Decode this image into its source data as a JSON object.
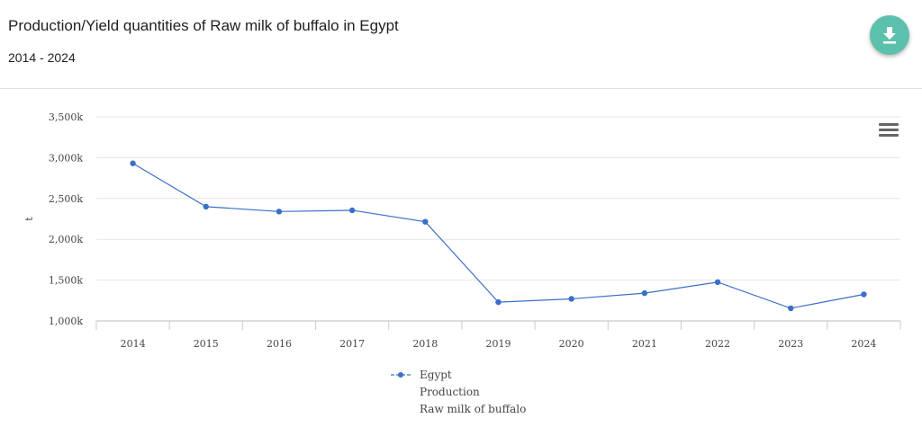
{
  "header": {
    "title": "Production/Yield quantities of Raw milk of buffalo in Egypt",
    "subtitle": "2014 - 2024"
  },
  "icons": {
    "download": "download-icon",
    "menu": "hamburger-menu-icon"
  },
  "colors": {
    "accent": "#5cc1ac",
    "series": "#3a6fc9"
  },
  "chart_data": {
    "type": "line",
    "title": "Production/Yield quantities of Raw milk of buffalo in Egypt",
    "subtitle": "2014 - 2024",
    "ylabel": "t",
    "xlabel": "",
    "categories": [
      "2014",
      "2015",
      "2016",
      "2017",
      "2018",
      "2019",
      "2020",
      "2021",
      "2022",
      "2023",
      "2024"
    ],
    "series": [
      {
        "name": "Egypt",
        "legend_lines": [
          "Egypt",
          "Production",
          "Raw milk of buffalo"
        ],
        "values": [
          2930000,
          2400000,
          2340000,
          2355000,
          2215000,
          1230000,
          1270000,
          1340000,
          1475000,
          1155000,
          1325000
        ]
      }
    ],
    "yticks": [
      "1,000k",
      "1,500k",
      "2,000k",
      "2,500k",
      "3,000k",
      "3,500k"
    ],
    "ylim": [
      1000000,
      3500000
    ],
    "grid": true,
    "legend_position": "bottom-center"
  }
}
